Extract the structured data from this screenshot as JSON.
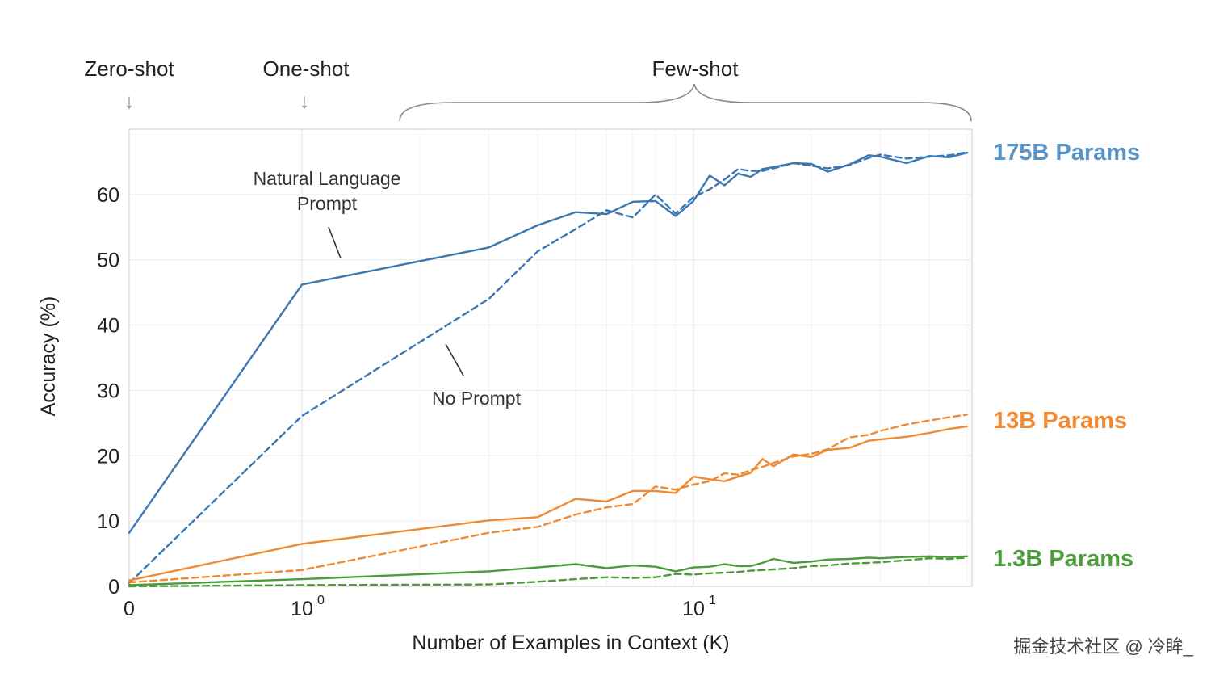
{
  "header": {
    "zero_shot": "Zero-shot",
    "one_shot": "One-shot",
    "few_shot": "Few-shot",
    "down_arrow": "↓"
  },
  "watermark": "掘金技术社区 @ 冷眸_",
  "chart_data": {
    "type": "line",
    "xlabel": "Number of Examples in Context  (K)",
    "ylabel": "Accuracy (%)",
    "xscale": "symlog",
    "xlim": [
      0,
      50
    ],
    "ylim": [
      0,
      70
    ],
    "yticks": [
      0,
      10,
      20,
      30,
      40,
      50,
      60
    ],
    "xticks": [
      {
        "value": 0,
        "label": "0",
        "exp": ""
      },
      {
        "value": 1,
        "label": "10",
        "exp": "0"
      },
      {
        "value": 10,
        "label": "10",
        "exp": "1"
      }
    ],
    "grid": true,
    "annotations": [
      {
        "text": [
          "Natural Language",
          "Prompt"
        ],
        "points_to": "solid line"
      },
      {
        "text": [
          "No Prompt"
        ],
        "points_to": "dashed line"
      }
    ],
    "series": [
      {
        "name": "175B Params",
        "prompt": "Natural Language Prompt",
        "color": "#3b77b0",
        "style": "solid",
        "x": [
          0,
          1,
          3,
          4,
          5,
          6,
          7,
          8,
          9,
          10,
          11,
          12,
          13,
          14,
          15,
          16,
          18,
          20,
          22,
          25,
          28,
          30,
          35,
          40,
          45,
          50
        ],
        "y": [
          8.2,
          46.2,
          51.9,
          55.3,
          57.3,
          57.0,
          58.9,
          59.0,
          56.7,
          59.0,
          62.9,
          61.4,
          63.2,
          62.7,
          63.9,
          64.2,
          64.8,
          64.7,
          63.5,
          64.6,
          66.0,
          65.8,
          64.8,
          65.9,
          65.7,
          66.4
        ]
      },
      {
        "name": "175B Params",
        "prompt": "No Prompt",
        "color": "#3b77b0",
        "style": "dashed",
        "x": [
          0,
          1,
          3,
          4,
          5,
          6,
          7,
          8,
          9,
          10,
          11,
          12,
          13,
          14,
          15,
          16,
          18,
          20,
          22,
          25,
          28,
          30,
          35,
          40,
          45,
          50
        ],
        "y": [
          0.5,
          26.1,
          44.0,
          51.3,
          54.7,
          57.6,
          56.5,
          60.0,
          57.1,
          59.6,
          60.8,
          62.3,
          63.9,
          63.6,
          63.6,
          64.0,
          64.8,
          64.4,
          64.0,
          64.5,
          65.6,
          66.1,
          65.5,
          65.8,
          66.0,
          66.5
        ]
      },
      {
        "name": "13B Params",
        "prompt": "Natural Language Prompt",
        "color": "#ef8a32",
        "style": "solid",
        "x": [
          0,
          1,
          3,
          4,
          5,
          6,
          7,
          8,
          9,
          10,
          11,
          12,
          13,
          14,
          15,
          16,
          18,
          20,
          22,
          25,
          28,
          30,
          35,
          40,
          45,
          50
        ],
        "y": [
          0.9,
          6.5,
          10.1,
          10.6,
          13.4,
          13.0,
          14.6,
          14.6,
          14.3,
          16.8,
          16.4,
          16.1,
          16.8,
          17.4,
          19.5,
          18.4,
          20.2,
          19.8,
          20.9,
          21.2,
          22.3,
          22.5,
          22.9,
          23.5,
          24.1,
          24.5
        ]
      },
      {
        "name": "13B Params",
        "prompt": "No Prompt",
        "color": "#ef8a32",
        "style": "dashed",
        "x": [
          0,
          1,
          3,
          4,
          5,
          6,
          7,
          8,
          9,
          10,
          11,
          12,
          13,
          14,
          15,
          16,
          18,
          20,
          22,
          25,
          28,
          30,
          35,
          40,
          45,
          50
        ],
        "y": [
          0.6,
          2.5,
          8.2,
          9.1,
          11.0,
          12.1,
          12.6,
          15.3,
          14.8,
          15.6,
          16.1,
          17.3,
          17.1,
          17.8,
          18.3,
          18.9,
          19.9,
          20.3,
          21.0,
          22.8,
          23.2,
          23.8,
          24.8,
          25.4,
          25.9,
          26.3
        ]
      },
      {
        "name": "1.3B Params",
        "prompt": "Natural Language Prompt",
        "color": "#4c9a3c",
        "style": "solid",
        "x": [
          0,
          1,
          3,
          4,
          5,
          6,
          7,
          8,
          9,
          10,
          11,
          12,
          13,
          14,
          15,
          16,
          18,
          20,
          22,
          25,
          28,
          30,
          35,
          40,
          45,
          50
        ],
        "y": [
          0.2,
          1.1,
          2.3,
          2.9,
          3.4,
          2.8,
          3.2,
          3.0,
          2.3,
          2.9,
          3.0,
          3.4,
          3.1,
          3.1,
          3.6,
          4.2,
          3.6,
          3.8,
          4.1,
          4.2,
          4.4,
          4.3,
          4.5,
          4.6,
          4.5,
          4.6
        ]
      },
      {
        "name": "1.3B Params",
        "prompt": "No Prompt",
        "color": "#4c9a3c",
        "style": "dashed",
        "x": [
          0,
          1,
          3,
          4,
          5,
          6,
          7,
          8,
          9,
          10,
          11,
          12,
          13,
          14,
          15,
          16,
          18,
          20,
          22,
          25,
          28,
          30,
          35,
          40,
          45,
          50
        ],
        "y": [
          0.0,
          0.2,
          0.3,
          0.7,
          1.1,
          1.4,
          1.3,
          1.4,
          1.9,
          1.8,
          2.0,
          2.1,
          2.2,
          2.4,
          2.5,
          2.6,
          2.8,
          3.1,
          3.2,
          3.5,
          3.6,
          3.7,
          4.0,
          4.3,
          4.2,
          4.4
        ]
      }
    ],
    "labels": [
      {
        "text": "175B Params",
        "color": "#5a93c6"
      },
      {
        "text": "13B Params",
        "color": "#f08a32"
      },
      {
        "text": "1.3B Params",
        "color": "#4f9c3c"
      }
    ]
  }
}
